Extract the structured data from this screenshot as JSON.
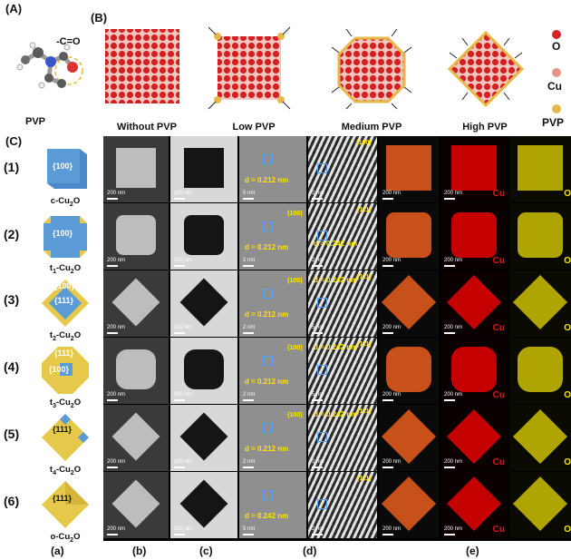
{
  "panel_letters": {
    "a": "(A)",
    "b": "(B)",
    "c": "(C)"
  },
  "molecule": {
    "group_label": "-C=O",
    "caption": "PVP"
  },
  "headers": {
    "without": "Without PVP",
    "low": "Low PVP",
    "medium": "Medium PVP",
    "high": "High PVP"
  },
  "legend": [
    {
      "label": "O",
      "color": "#d62222"
    },
    {
      "label": "Cu",
      "color": "#e9938a"
    },
    {
      "label": "PVP",
      "color": "#e6b84a"
    }
  ],
  "rows": [
    {
      "num": "(1)",
      "facet": "{100}",
      "name": "c-Cu",
      "sub": "2",
      "tail": "O",
      "d": "d = 0.212 nm",
      "d2": "",
      "inset1": "",
      "inset2": "{100}"
    },
    {
      "num": "(2)",
      "facet": "{100}",
      "name": "t",
      "sub1": "1",
      "mid": "-Cu",
      "sub": "2",
      "tail": "O",
      "d": "d = 0.212 nm",
      "d2": "d = 0.242 nm",
      "inset1": "{100}",
      "inset2": "{111}"
    },
    {
      "num": "(3)",
      "facet": "{100}",
      "facet2": "{111}",
      "name": "t",
      "sub1": "2",
      "mid": "-Cu",
      "sub": "2",
      "tail": "O",
      "d": "d = 0.212 nm",
      "d2": "d = 0.242 nm",
      "inset1": "{100}",
      "inset2": "{111}"
    },
    {
      "num": "(4)",
      "facet": "{111}",
      "facet2": "{100}",
      "name": "t",
      "sub1": "3",
      "mid": "-Cu",
      "sub": "2",
      "tail": "O",
      "d": "d = 0.212 nm",
      "d2": "d = 0.242 nm",
      "inset1": "{100}",
      "inset2": "{111}"
    },
    {
      "num": "(5)",
      "facet": "{111}",
      "name": "t",
      "sub1": "4",
      "mid": "-Cu",
      "sub": "2",
      "tail": "O",
      "d": "d = 0.212 nm",
      "d2": "d = 0.242 nm",
      "inset1": "{100}",
      "inset2": "{111}"
    },
    {
      "num": "(6)",
      "facet": "{111}",
      "name": "o-Cu",
      "sub": "2",
      "tail": "O",
      "d": "d = 0.242 nm",
      "d2": "",
      "inset1": "",
      "inset2": "{111}"
    }
  ],
  "scalebars": {
    "s200": "200 nm",
    "s5": "5 nm",
    "s2": "2 nm"
  },
  "map_labels": {
    "cu": "Cu",
    "o": "O"
  },
  "column_letters": {
    "a": "(a)",
    "b": "(b)",
    "c": "(c)",
    "d": "(d)",
    "e": "(e)"
  }
}
